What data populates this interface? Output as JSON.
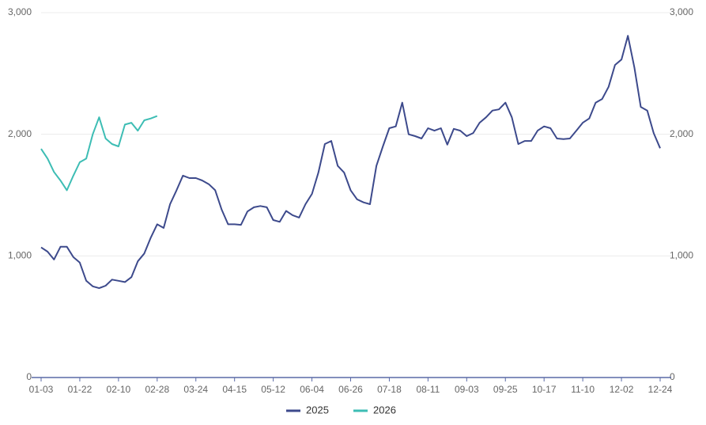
{
  "chart_data": {
    "type": "line",
    "categories": [
      "01-03",
      null,
      null,
      null,
      null,
      null,
      "01-22",
      null,
      null,
      null,
      null,
      null,
      "02-10",
      null,
      null,
      null,
      null,
      null,
      "02-28",
      null,
      null,
      null,
      null,
      null,
      "03-24",
      null,
      null,
      null,
      null,
      null,
      "04-15",
      null,
      null,
      null,
      null,
      null,
      "05-12",
      null,
      null,
      null,
      null,
      null,
      "06-04",
      null,
      null,
      null,
      null,
      null,
      "06-26",
      null,
      null,
      null,
      null,
      null,
      "07-18",
      null,
      null,
      null,
      null,
      null,
      "08-11",
      null,
      null,
      null,
      null,
      null,
      "09-03",
      null,
      null,
      null,
      null,
      null,
      "09-25",
      null,
      null,
      null,
      null,
      null,
      "10-17",
      null,
      null,
      null,
      null,
      null,
      "11-10",
      null,
      null,
      null,
      null,
      null,
      "12-02",
      null,
      null,
      null,
      null,
      null,
      "12-24"
    ],
    "series": [
      {
        "name": "2025",
        "color": "#3d4a8c",
        "values": [
          1070,
          1035,
          970,
          1075,
          1075,
          990,
          945,
          795,
          750,
          735,
          755,
          805,
          795,
          785,
          825,
          955,
          1020,
          1150,
          1260,
          1230,
          1425,
          1540,
          1660,
          1640,
          1640,
          1620,
          1590,
          1540,
          1380,
          1260,
          1260,
          1255,
          1365,
          1400,
          1410,
          1400,
          1295,
          1280,
          1370,
          1335,
          1315,
          1425,
          1510,
          1685,
          1920,
          1945,
          1740,
          1685,
          1540,
          1465,
          1440,
          1425,
          1740,
          1900,
          2050,
          2065,
          2260,
          2000,
          1985,
          1965,
          2050,
          2030,
          2050,
          1915,
          2045,
          2030,
          1985,
          2010,
          2095,
          2140,
          2195,
          2205,
          2260,
          2140,
          1920,
          1945,
          1945,
          2030,
          2065,
          2050,
          1965,
          1960,
          1965,
          2030,
          2095,
          2130,
          2260,
          2290,
          2390,
          2570,
          2615,
          2810,
          2550,
          2225,
          2195,
          2010,
          1885
        ]
      },
      {
        "name": "2026",
        "color": "#3dbdb4",
        "values": [
          1880,
          1800,
          1690,
          1620,
          1540,
          1660,
          1770,
          1800,
          2000,
          2140,
          1965,
          1920,
          1900,
          2080,
          2095,
          2030,
          2115,
          2130,
          2150,
          null,
          null,
          null,
          null,
          null,
          null,
          null,
          null,
          null,
          null,
          null,
          null,
          null,
          null,
          null,
          null,
          null,
          null,
          null,
          null,
          null,
          null,
          null,
          null,
          null,
          null,
          null,
          null,
          null,
          null,
          null,
          null,
          null,
          null,
          null,
          null,
          null,
          null,
          null,
          null,
          null,
          null,
          null,
          null,
          null,
          null,
          null,
          null,
          null,
          null,
          null,
          null,
          null,
          null,
          null,
          null,
          null,
          null,
          null,
          null,
          null,
          null,
          null,
          null,
          null,
          null,
          null,
          null,
          null,
          null,
          null,
          null,
          null,
          null,
          null,
          null,
          null,
          null
        ]
      }
    ],
    "ylim": [
      0,
      3000
    ],
    "yticks": [
      0,
      {
        "value": 1000,
        "label": "1,000"
      },
      {
        "value": 2000,
        "label": "2,000"
      },
      {
        "value": 3000,
        "label": "3,000"
      }
    ],
    "y2lim": [
      0,
      3000
    ],
    "y2ticks": [
      0,
      {
        "value": 1000,
        "label": "1,000"
      },
      {
        "value": 2000,
        "label": "2,000"
      },
      {
        "value": 3000,
        "label": "3,000"
      }
    ],
    "grid": true,
    "legend": "bottom"
  }
}
